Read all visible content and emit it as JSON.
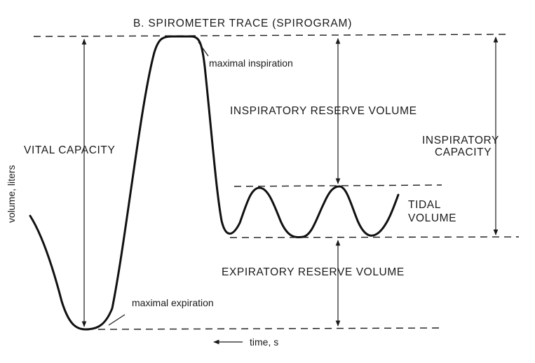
{
  "title": "B. SPIROMETER TRACE (SPIROGRAM)",
  "y_axis_label": "volume, liters",
  "x_axis_label": "time, s",
  "labels": {
    "vital_capacity": "VITAL CAPACITY",
    "inspiratory_reserve_volume": "INSPIRATORY RESERVE VOLUME",
    "inspiratory_capacity_line1": "INSPIRATORY",
    "inspiratory_capacity_line2": "CAPACITY",
    "tidal_volume_line1": "TIDAL",
    "tidal_volume_line2": "VOLUME",
    "expiratory_reserve_volume": "EXPIRATORY RESERVE VOLUME"
  },
  "annotations": {
    "maximal_inspiration": "maximal inspiration",
    "maximal_expiration": "maximal expiration"
  },
  "colors": {
    "ink": "#1a1a1a",
    "background": "#ffffff"
  }
}
